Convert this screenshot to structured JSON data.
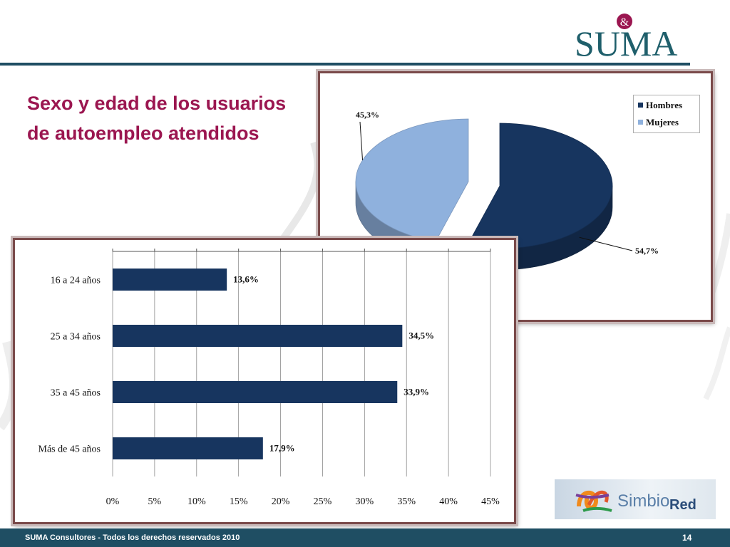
{
  "slide": {
    "title_line1": "Sexo y edad de los usuarios",
    "title_line2": "de autoempleo atendidos",
    "logo_text": "SUMA",
    "logo_ampersand": "&",
    "partner_logo_text_a": "Simbio",
    "partner_logo_text_b": "Red",
    "footer_text": "SUMA Consultores - Todos los derechos reservados 2010",
    "page_number": "14"
  },
  "colors": {
    "title": "#9b1650",
    "footer_bg": "#1f4e63",
    "hombres": "#17355f",
    "mujeres": "#8fb1dd",
    "bars": "#17355f"
  },
  "chart_data": [
    {
      "type": "pie",
      "title": "",
      "labels": [
        "Hombres",
        "Mujeres"
      ],
      "values": [
        54.7,
        45.3
      ],
      "value_labels": [
        "54,7%",
        "45,3%"
      ],
      "colors": [
        "#17355f",
        "#8fb1dd"
      ],
      "legend_placement": "top-right",
      "style": "3d-exploded"
    },
    {
      "type": "bar",
      "orientation": "horizontal",
      "title": "",
      "xlabel": "",
      "ylabel": "",
      "categories": [
        "16 a 24 años",
        "25 a 34 años",
        "35 a 45 años",
        "Más de 45 años"
      ],
      "values": [
        13.6,
        34.5,
        33.9,
        17.9
      ],
      "value_labels": [
        "13,6%",
        "34,5%",
        "33,9%",
        "17,9%"
      ],
      "xlim": [
        0,
        45
      ],
      "x_ticks": [
        0,
        5,
        10,
        15,
        20,
        25,
        30,
        35,
        40,
        45
      ],
      "x_tick_labels": [
        "0%",
        "5%",
        "10%",
        "15%",
        "20%",
        "25%",
        "30%",
        "35%",
        "40%",
        "45%"
      ],
      "grid": true
    }
  ]
}
